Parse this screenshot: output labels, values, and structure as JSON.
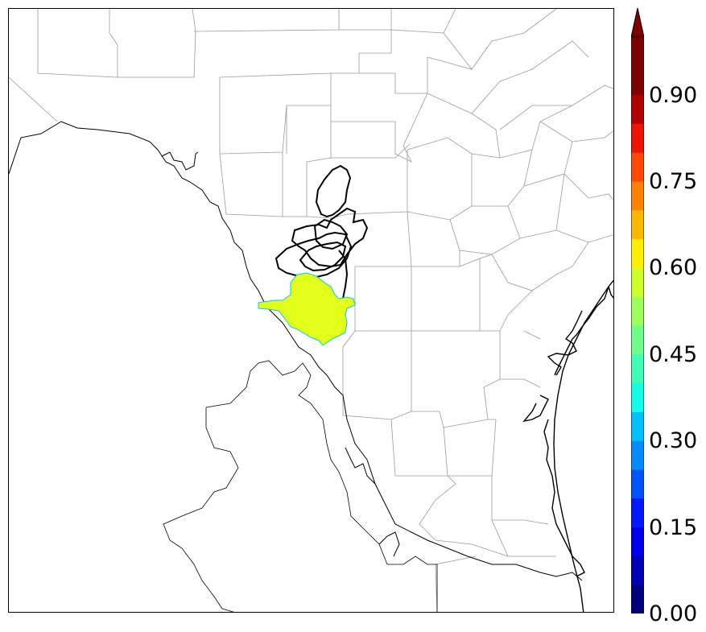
{
  "map": {
    "title": "",
    "field_fill_color": "#e2ff1a",
    "field_edge_color": "#00c8ff",
    "contour_color": "#000000",
    "county_line_color": "#9a9a9a",
    "coast_color": "#000000"
  },
  "colorbar": {
    "extend": "max",
    "colormap": "jet",
    "levels": 20,
    "vmin": 0.0,
    "vmax": 1.0,
    "tick_labels": [
      "0.00",
      "0.15",
      "0.30",
      "0.45",
      "0.60",
      "0.75",
      "0.90"
    ],
    "colors": [
      "#00007f",
      "#0000b6",
      "#0000f1",
      "#0019ff",
      "#0054ff",
      "#008cff",
      "#00c0ff",
      "#10ffe6",
      "#3fffb7",
      "#6dff89",
      "#9dff59",
      "#ccff2a",
      "#fbf000",
      "#ffb800",
      "#ff8200",
      "#ff4a00",
      "#ed1400",
      "#b20000",
      "#7f0000",
      "#7f0000"
    ]
  }
}
